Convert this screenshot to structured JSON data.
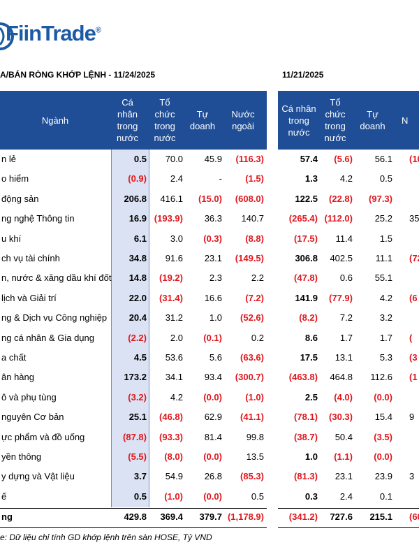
{
  "logo": {
    "name": "FiinTrade",
    "mark": "®"
  },
  "title_left": "A/BÁN RÒNG KHỚP LỆNH - 11/24/2025",
  "title_right": "11/21/2025",
  "headers": {
    "sector": "Ngành",
    "left": [
      "Cá nhân trong nước",
      "Tổ chức trong nước",
      "Tự doanh",
      "Nước ngoài"
    ],
    "right": [
      "Cá nhân trong nước",
      "Tổ chức trong nước",
      "Tự doanh",
      "N"
    ]
  },
  "rows": [
    {
      "name": "n lẻ",
      "left": [
        "0.5",
        "70.0",
        "45.9",
        "(116.3)"
      ],
      "right": [
        "57.4",
        "(5.6)",
        "56.1",
        "(10"
      ]
    },
    {
      "name": "o hiểm",
      "left": [
        "(0.9)",
        "2.4",
        "-",
        "(1.5)"
      ],
      "right": [
        "1.3",
        "4.2",
        "0.5",
        null
      ]
    },
    {
      "name": "động sản",
      "left": [
        "206.8",
        "416.1",
        "(15.0)",
        "(608.0)"
      ],
      "right": [
        "122.5",
        "(22.8)",
        "(97.3)",
        null
      ]
    },
    {
      "name": "ng nghệ Thông tin",
      "left": [
        "16.9",
        "(193.9)",
        "36.3",
        "140.7"
      ],
      "right": [
        "(265.4)",
        "(112.0)",
        "25.2",
        "35"
      ]
    },
    {
      "name": "u khí",
      "left": [
        "6.1",
        "3.0",
        "(0.3)",
        "(8.8)"
      ],
      "right": [
        "(17.5)",
        "11.4",
        "1.5",
        null
      ]
    },
    {
      "name": "ch vụ tài chính",
      "left": [
        "34.8",
        "91.6",
        "23.1",
        "(149.5)"
      ],
      "right": [
        "306.8",
        "402.5",
        "11.1",
        "(72"
      ]
    },
    {
      "name": "n, nước & xăng dầu khí đốt",
      "left": [
        "14.8",
        "(19.2)",
        "2.3",
        "2.2"
      ],
      "right": [
        "(47.8)",
        "0.6",
        "55.1",
        null
      ]
    },
    {
      "name": "lịch và Giải trí",
      "left": [
        "22.0",
        "(31.4)",
        "16.6",
        "(7.2)"
      ],
      "right": [
        "141.9",
        "(77.9)",
        "4.2",
        "(6"
      ]
    },
    {
      "name": "ng & Dịch vụ Công nghiệp",
      "left": [
        "20.4",
        "31.2",
        "1.0",
        "(52.6)"
      ],
      "right": [
        "(8.2)",
        "7.2",
        "3.2",
        null
      ]
    },
    {
      "name": "ng cá nhân & Gia dụng",
      "left": [
        "(2.2)",
        "2.0",
        "(0.1)",
        "0.2"
      ],
      "right": [
        "8.6",
        "1.7",
        "1.7",
        "("
      ]
    },
    {
      "name": "a chất",
      "left": [
        "4.5",
        "53.6",
        "5.6",
        "(63.6)"
      ],
      "right": [
        "17.5",
        "13.1",
        "5.3",
        "(3"
      ]
    },
    {
      "name": "ân hàng",
      "left": [
        "173.2",
        "34.1",
        "93.4",
        "(300.7)"
      ],
      "right": [
        "(463.8)",
        "464.8",
        "112.6",
        "(1"
      ]
    },
    {
      "name": "ô và phụ tùng",
      "left": [
        "(3.2)",
        "4.2",
        "(0.0)",
        "(1.0)"
      ],
      "right": [
        "2.5",
        "(4.0)",
        "(0.0)",
        null
      ]
    },
    {
      "name": "nguyên Cơ bản",
      "left": [
        "25.1",
        "(46.8)",
        "62.9",
        "(41.1)"
      ],
      "right": [
        "(78.1)",
        "(30.3)",
        "15.4",
        "9"
      ]
    },
    {
      "name": "ực phẩm và đồ uống",
      "left": [
        "(87.8)",
        "(93.3)",
        "81.4",
        "99.8"
      ],
      "right": [
        "(38.7)",
        "50.4",
        "(3.5)",
        null
      ]
    },
    {
      "name": "yền thông",
      "left": [
        "(5.5)",
        "(8.0)",
        "(0.0)",
        "13.5"
      ],
      "right": [
        "1.0",
        "(1.1)",
        "(0.0)",
        null
      ]
    },
    {
      "name": "y dựng và Vật liệu",
      "left": [
        "3.7",
        "54.9",
        "26.8",
        "(85.3)"
      ],
      "right": [
        "(81.3)",
        "23.1",
        "23.9",
        "3"
      ]
    },
    {
      "name": "ế",
      "left": [
        "0.5",
        "(1.0)",
        "(0.0)",
        "0.5"
      ],
      "right": [
        "0.3",
        "2.4",
        "0.1",
        null
      ]
    }
  ],
  "total": {
    "name": "ng",
    "left": [
      "429.8",
      "369.4",
      "379.7",
      "(1,178.9)"
    ],
    "right": [
      "(341.2)",
      "727.6",
      "215.1",
      "(60"
    ]
  },
  "note": "e: Dữ liệu chỉ tính GD khớp lệnh trên sàn HOSE, Tỷ VND"
}
